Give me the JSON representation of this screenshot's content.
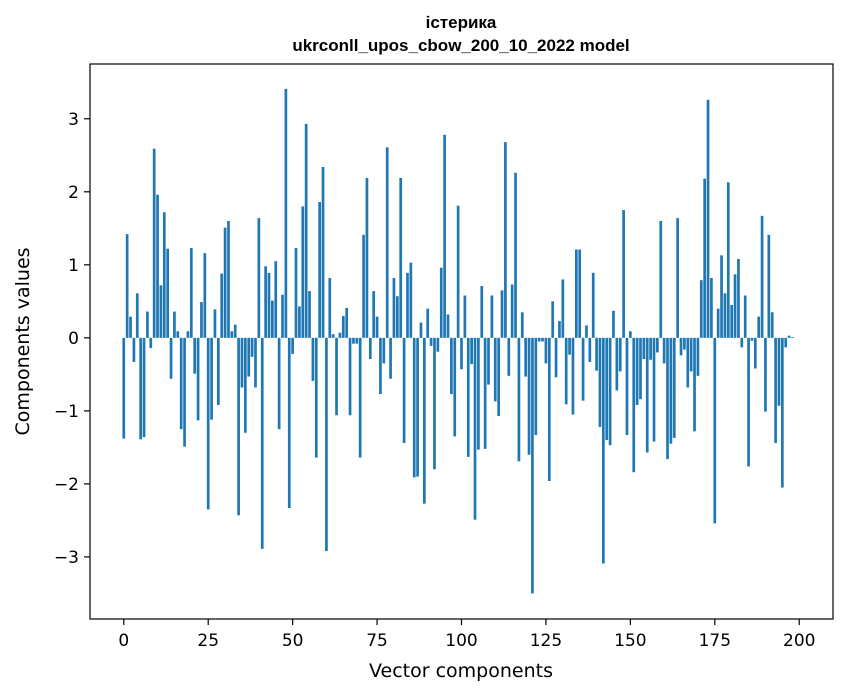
{
  "chart_data": {
    "type": "bar",
    "title": "істерика",
    "subtitle": "ukrconll_upos_cbow_200_10_2022 model",
    "xlabel": "Vector components",
    "ylabel": "Components values",
    "xlim": [
      -10,
      210
    ],
    "ylim": [
      -3.85,
      3.75
    ],
    "xticks": [
      0,
      25,
      50,
      75,
      100,
      125,
      150,
      175,
      200
    ],
    "yticks": [
      -3,
      -2,
      -1,
      0,
      1,
      2,
      3
    ],
    "ytick_labels": [
      "−3",
      "−2",
      "−1",
      "0",
      "1",
      "2",
      "3"
    ],
    "bar_color": "#1f77b4",
    "grid": false,
    "values": [
      -1.38,
      1.42,
      0.29,
      -0.33,
      0.61,
      -1.39,
      -1.36,
      0.36,
      -0.14,
      2.59,
      1.96,
      0.72,
      1.72,
      1.22,
      -0.56,
      0.36,
      0.09,
      -1.25,
      -1.49,
      0.09,
      1.23,
      -0.49,
      -1.13,
      0.49,
      1.16,
      -2.35,
      -1.12,
      0.39,
      -0.92,
      0.88,
      1.51,
      1.6,
      0.09,
      0.18,
      -2.43,
      -0.68,
      -1.3,
      -0.53,
      -0.26,
      -0.68,
      1.64,
      -2.89,
      0.98,
      0.89,
      0.51,
      1.05,
      -1.25,
      0.59,
      3.41,
      -2.33,
      -0.22,
      1.23,
      0.43,
      1.8,
      2.93,
      0.64,
      -0.59,
      -1.64,
      1.86,
      2.34,
      -2.92,
      0.82,
      0.05,
      -1.06,
      0.07,
      0.3,
      0.41,
      -1.06,
      -0.08,
      -0.08,
      -1.64,
      1.41,
      2.19,
      -0.29,
      0.64,
      0.29,
      -0.77,
      -0.35,
      2.61,
      -0.56,
      0.82,
      0.57,
      2.19,
      -1.44,
      0.89,
      1.03,
      -1.91,
      -1.9,
      0.21,
      -2.27,
      0.4,
      -0.11,
      -1.8,
      -0.19,
      0.96,
      2.78,
      0.32,
      -0.77,
      -1.35,
      1.81,
      -0.43,
      0.58,
      -1.63,
      -0.36,
      -2.49,
      -1.53,
      0.71,
      -1.52,
      -0.64,
      0.58,
      -0.87,
      -1.07,
      0.65,
      2.68,
      -0.52,
      0.73,
      2.26,
      -1.69,
      0.35,
      -0.53,
      -1.6,
      -3.5,
      -1.33,
      -0.05,
      -0.05,
      -0.35,
      -1.96,
      0.5,
      -0.54,
      0.23,
      0.8,
      -0.91,
      -0.23,
      -1.05,
      1.21,
      1.21,
      -0.86,
      0.17,
      -0.33,
      0.89,
      -0.45,
      -1.22,
      -3.09,
      -1.4,
      -1.47,
      0.37,
      -0.72,
      -0.46,
      1.75,
      -1.33,
      0.09,
      -1.84,
      -0.92,
      -0.84,
      -0.29,
      -1.57,
      -0.3,
      -1.42,
      -0.2,
      1.6,
      -0.35,
      -1.66,
      -1.45,
      -1.37,
      1.64,
      -0.24,
      -0.16,
      -0.68,
      -0.46,
      -1.28,
      -0.52,
      0.79,
      2.18,
      3.26,
      0.82,
      -2.54,
      0.4,
      1.13,
      0.61,
      2.13,
      0.45,
      0.87,
      1.08,
      -0.13,
      0.58,
      -1.76,
      -0.04,
      -0.42,
      0.29,
      1.67,
      -1.01,
      1.41,
      0.35,
      -1.44,
      -0.93,
      -2.05,
      -0.13,
      0.03,
      0.01
    ]
  }
}
